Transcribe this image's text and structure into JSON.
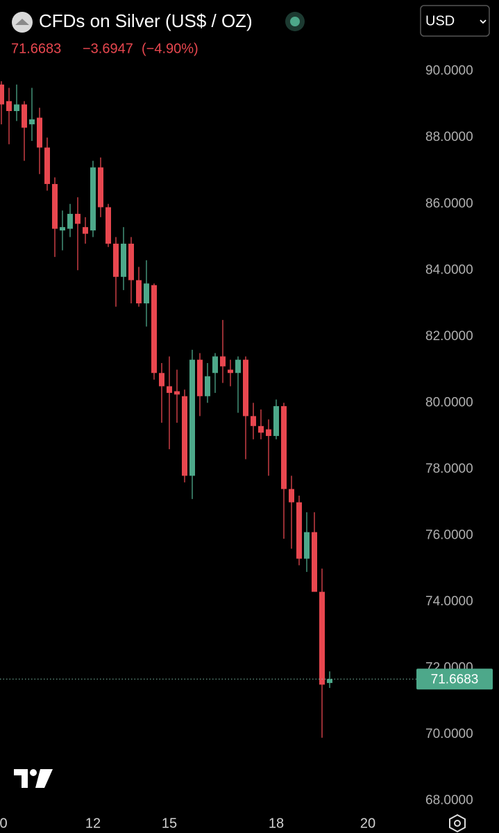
{
  "header": {
    "title": "CFDs on Silver (US$ / OZ)",
    "change": "−3.6947",
    "change_pct": "(−4.90%)",
    "currency": "USD"
  },
  "chart_data": {
    "type": "candlestick",
    "up_color": "#4da88a",
    "down_color": "#e8474f",
    "categories": [
      "0",
      null,
      null,
      null,
      null,
      null,
      null,
      null,
      null,
      null,
      null,
      null,
      "12",
      null,
      null,
      null,
      null,
      null,
      null,
      null,
      null,
      null,
      "15",
      null,
      null,
      null,
      null,
      null,
      null,
      null,
      null,
      null,
      null,
      null,
      null,
      null,
      "18",
      null,
      null,
      null,
      null,
      null,
      null,
      null,
      null,
      null,
      null,
      null,
      "20",
      null,
      null,
      null,
      null,
      null,
      null
    ],
    "open": [
      89.6,
      89.1,
      88.8,
      89.0,
      88.4,
      88.6,
      87.7,
      86.6,
      85.2,
      85.25,
      85.7,
      85.3,
      85.2,
      87.1,
      85.9,
      84.8,
      83.8,
      84.8,
      83.7,
      83.0,
      83.55,
      80.9,
      80.5,
      80.35,
      80.2,
      77.8,
      81.3,
      80.2,
      80.9,
      81.4,
      81.0,
      80.9,
      81.3,
      79.6,
      79.3,
      79.2,
      79.0,
      79.9,
      77.4,
      77.0,
      75.3,
      76.1,
      74.3,
      71.55,
      null,
      null,
      null,
      null,
      null,
      null,
      null,
      null,
      null,
      null,
      null
    ],
    "high": [
      89.7,
      89.5,
      89.6,
      89.1,
      89.5,
      88.9,
      88.0,
      86.8,
      85.8,
      86.0,
      86.2,
      85.6,
      87.3,
      87.4,
      86.0,
      85.0,
      85.3,
      85.0,
      84.1,
      84.3,
      83.6,
      81.2,
      81.4,
      81.0,
      80.4,
      81.6,
      81.5,
      81.2,
      81.5,
      82.5,
      81.3,
      81.4,
      81.4,
      80.0,
      79.8,
      79.5,
      80.1,
      80.0,
      77.8,
      77.2,
      76.7,
      76.7,
      75.0,
      71.9,
      null,
      null,
      null,
      null,
      null,
      null,
      null,
      null,
      null,
      null,
      null
    ],
    "low": [
      88.4,
      87.8,
      88.5,
      87.3,
      87.9,
      86.9,
      86.4,
      84.4,
      84.6,
      85.0,
      84.0,
      84.8,
      85.0,
      85.6,
      84.7,
      82.9,
      83.4,
      83.0,
      82.9,
      82.3,
      80.7,
      79.4,
      78.6,
      79.4,
      77.6,
      77.1,
      79.6,
      80.0,
      80.3,
      80.6,
      80.5,
      79.7,
      78.3,
      78.9,
      78.9,
      77.8,
      78.9,
      75.9,
      75.6,
      75.1,
      74.9,
      74.3,
      69.9,
      71.4,
      null,
      null,
      null,
      null,
      null,
      null,
      null,
      null,
      null,
      null,
      null
    ],
    "close": [
      89.0,
      88.8,
      89.0,
      88.3,
      88.55,
      87.7,
      86.6,
      85.25,
      85.3,
      85.7,
      85.4,
      85.1,
      87.1,
      85.9,
      84.8,
      83.8,
      84.8,
      83.7,
      83.0,
      83.6,
      80.9,
      80.5,
      80.3,
      80.25,
      77.8,
      81.3,
      80.2,
      80.8,
      81.4,
      81.1,
      80.9,
      81.3,
      79.6,
      79.3,
      79.1,
      79.0,
      79.9,
      77.4,
      77.0,
      75.3,
      76.1,
      74.3,
      71.5,
      71.6683,
      null,
      null,
      null,
      null,
      null,
      null,
      null,
      null,
      null,
      null,
      null
    ],
    "ylim": [
      67.8,
      92.15
    ],
    "yticks": [
      {
        "value": 68,
        "label": "68.0000"
      },
      {
        "value": 70,
        "label": "70.0000"
      },
      {
        "value": 72,
        "label": "72.0000"
      },
      {
        "value": 74,
        "label": "74.0000"
      },
      {
        "value": 76,
        "label": "76.0000"
      },
      {
        "value": 78,
        "label": "78.0000"
      },
      {
        "value": 80,
        "label": "80.0000"
      },
      {
        "value": 82,
        "label": "82.0000"
      },
      {
        "value": 84,
        "label": "84.0000"
      },
      {
        "value": 86,
        "label": "86.0000"
      },
      {
        "value": 88,
        "label": "88.0000"
      },
      {
        "value": 90,
        "label": "90.0000"
      }
    ],
    "grid": false
  }
}
